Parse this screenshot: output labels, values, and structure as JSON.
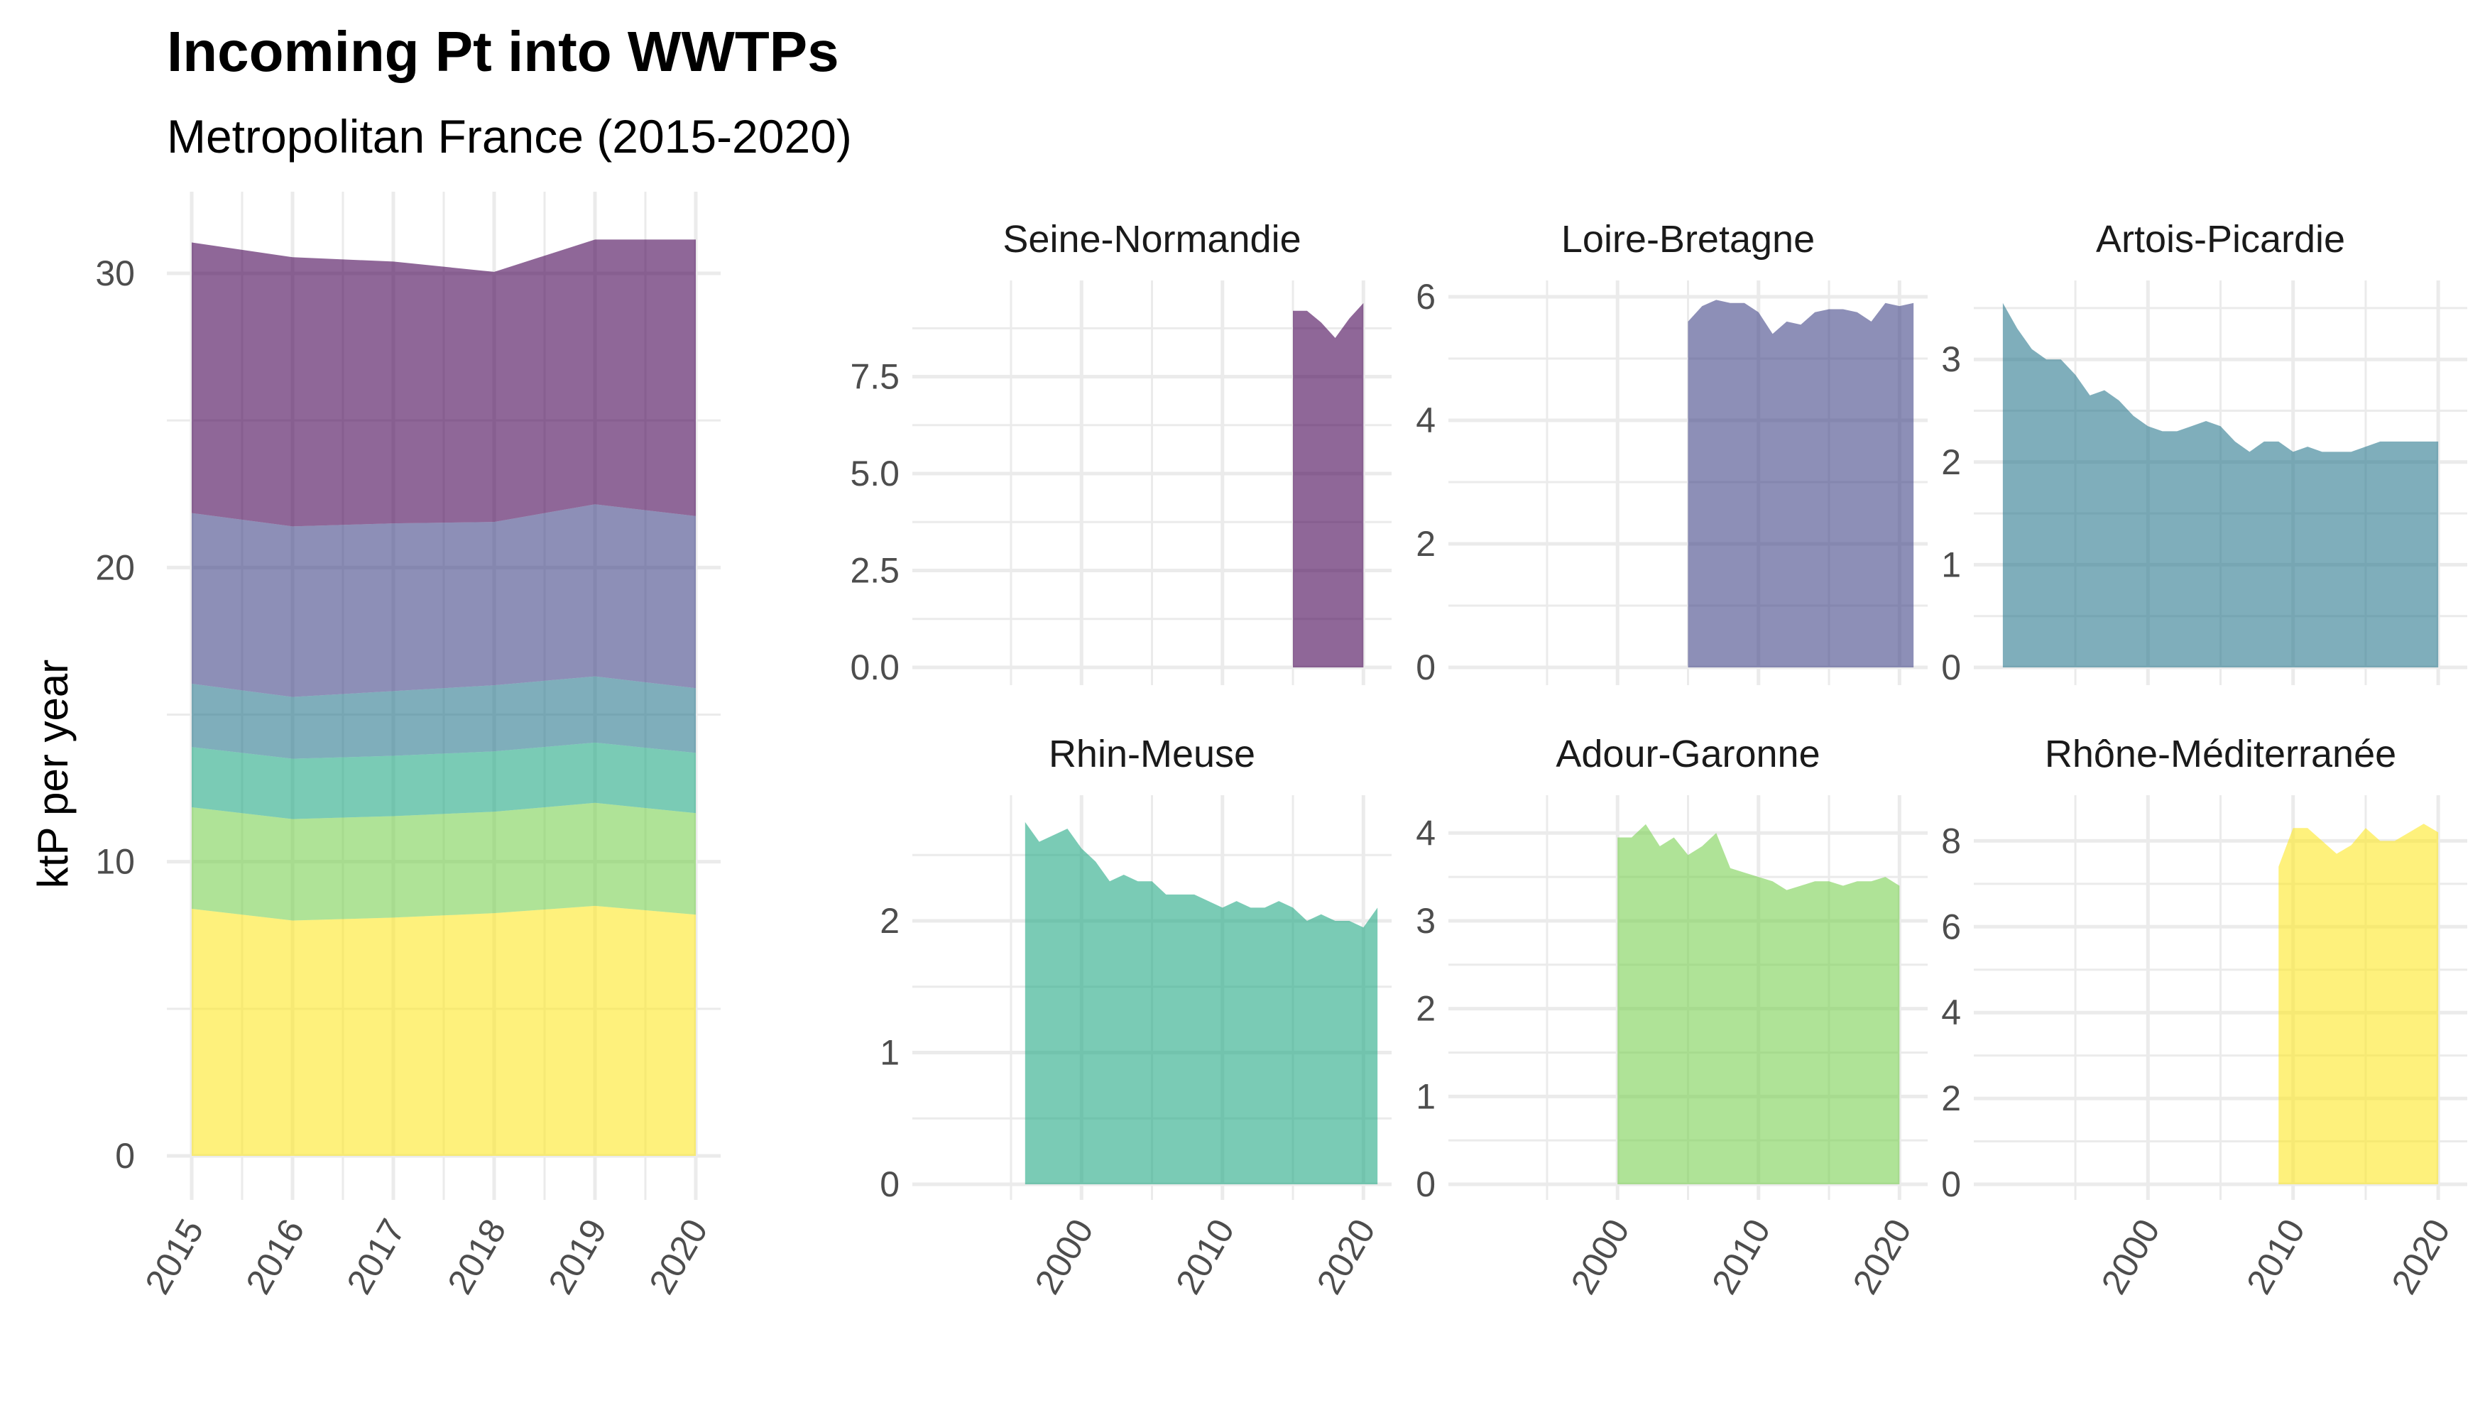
{
  "title": "Incoming Pt into WWTPs",
  "subtitle": "Metropolitan France (2015-2020)",
  "ylabel": "ktP per year",
  "colors": {
    "Seine-Normandie": "#440154",
    "Loire-Bretagne": "#414487",
    "Artois-Picardie": "#2a788e",
    "Rhin-Meuse": "#22a884",
    "Adour-Garonne": "#7ad151",
    "Rhône-Méditerranée": "#fde725"
  },
  "chart_data": [
    {
      "type": "area",
      "stacked": true,
      "x": [
        2015,
        2016,
        2017,
        2018,
        2019,
        2020
      ],
      "xticks": [
        "2015",
        "2016",
        "2017",
        "2018",
        "2019",
        "2020"
      ],
      "yticks": [
        "0",
        "10",
        "20",
        "30"
      ],
      "ylim": [
        0,
        31.5
      ],
      "series": [
        {
          "name": "Rhône-Méditerranée",
          "values": [
            8.4,
            8.0,
            8.1,
            8.25,
            8.5,
            8.2
          ]
        },
        {
          "name": "Adour-Garonne",
          "values": [
            3.45,
            3.45,
            3.45,
            3.45,
            3.5,
            3.45
          ]
        },
        {
          "name": "Rhin-Meuse",
          "values": [
            2.05,
            2.05,
            2.05,
            2.05,
            2.05,
            2.05
          ]
        },
        {
          "name": "Artois-Picardie",
          "values": [
            2.15,
            2.1,
            2.2,
            2.25,
            2.25,
            2.2
          ]
        },
        {
          "name": "Loire-Bretagne",
          "values": [
            5.8,
            5.8,
            5.7,
            5.55,
            5.85,
            5.85
          ]
        },
        {
          "name": "Seine-Normandie",
          "values": [
            9.2,
            9.15,
            8.9,
            8.5,
            9.0,
            9.4
          ]
        }
      ]
    },
    {
      "type": "area",
      "facets": [
        {
          "name": "Seine-Normandie",
          "x": [
            2015,
            2016,
            2017,
            2018,
            2019,
            2020
          ],
          "values": [
            9.2,
            9.2,
            8.9,
            8.5,
            9.0,
            9.4
          ],
          "ylim": [
            0,
            9.8
          ],
          "yticks": [
            0,
            2.5,
            5,
            7.5
          ],
          "yticklabels": [
            "0.0",
            "2.5",
            "5.0",
            "7.5"
          ]
        },
        {
          "name": "Loire-Bretagne",
          "x": [
            2005,
            2006,
            2007,
            2008,
            2009,
            2010,
            2011,
            2012,
            2013,
            2014,
            2015,
            2016,
            2017,
            2018,
            2019,
            2020,
            2021
          ],
          "values": [
            5.6,
            5.85,
            5.95,
            5.9,
            5.9,
            5.75,
            5.4,
            5.6,
            5.55,
            5.75,
            5.8,
            5.8,
            5.75,
            5.6,
            5.9,
            5.85,
            5.9
          ],
          "ylim": [
            0,
            6.15
          ],
          "yticks": [
            0,
            2,
            4,
            6
          ],
          "yticklabels": [
            "0",
            "2",
            "4",
            "6"
          ]
        },
        {
          "name": "Artois-Picardie",
          "x": [
            1990,
            1991,
            1992,
            1993,
            1994,
            1995,
            1996,
            1997,
            1998,
            1999,
            2000,
            2001,
            2002,
            2003,
            2004,
            2005,
            2006,
            2007,
            2008,
            2009,
            2010,
            2011,
            2012,
            2013,
            2014,
            2015,
            2016,
            2017,
            2018,
            2019,
            2020
          ],
          "values": [
            3.55,
            3.3,
            3.1,
            3.0,
            3.0,
            2.85,
            2.65,
            2.7,
            2.6,
            2.45,
            2.35,
            2.3,
            2.3,
            2.35,
            2.4,
            2.35,
            2.2,
            2.1,
            2.2,
            2.2,
            2.1,
            2.15,
            2.1,
            2.1,
            2.1,
            2.15,
            2.2,
            2.2,
            2.2,
            2.2,
            2.2
          ],
          "ylim": [
            0,
            3.7
          ],
          "yticks": [
            0,
            1,
            2,
            3
          ],
          "yticklabels": [
            "0",
            "1",
            "2",
            "3"
          ]
        },
        {
          "name": "Rhin-Meuse",
          "x": [
            1996,
            1997,
            1998,
            1999,
            2000,
            2001,
            2002,
            2003,
            2004,
            2005,
            2006,
            2007,
            2008,
            2009,
            2010,
            2011,
            2012,
            2013,
            2014,
            2015,
            2016,
            2017,
            2018,
            2019,
            2020,
            2021
          ],
          "values": [
            2.75,
            2.6,
            2.65,
            2.7,
            2.55,
            2.45,
            2.3,
            2.35,
            2.3,
            2.3,
            2.2,
            2.2,
            2.2,
            2.15,
            2.1,
            2.15,
            2.1,
            2.1,
            2.15,
            2.1,
            2.0,
            2.05,
            2.0,
            2.0,
            1.95,
            2.1
          ],
          "ylim": [
            0,
            2.9
          ],
          "yticks": [
            0,
            1,
            2
          ],
          "yticklabels": [
            "0",
            "1",
            "2"
          ]
        },
        {
          "name": "Adour-Garonne",
          "x": [
            2000,
            2001,
            2002,
            2003,
            2004,
            2005,
            2006,
            2007,
            2008,
            2009,
            2010,
            2011,
            2012,
            2013,
            2014,
            2015,
            2016,
            2017,
            2018,
            2019,
            2020
          ],
          "values": [
            3.95,
            3.95,
            4.1,
            3.85,
            3.95,
            3.75,
            3.85,
            4.0,
            3.6,
            3.55,
            3.5,
            3.45,
            3.35,
            3.4,
            3.45,
            3.45,
            3.4,
            3.45,
            3.45,
            3.5,
            3.4
          ],
          "ylim": [
            0,
            4.35
          ],
          "yticks": [
            0,
            1,
            2,
            3,
            4
          ],
          "yticklabels": [
            "0",
            "1",
            "2",
            "3",
            "4"
          ]
        },
        {
          "name": "Rhône-Méditerranée",
          "x": [
            2009,
            2010,
            2011,
            2012,
            2013,
            2014,
            2015,
            2016,
            2017,
            2018,
            2019,
            2020
          ],
          "values": [
            7.4,
            8.3,
            8.3,
            8.0,
            7.7,
            7.9,
            8.3,
            8.0,
            8.0,
            8.2,
            8.4,
            8.2
          ],
          "ylim": [
            0,
            8.9
          ],
          "yticks": [
            0,
            2,
            4,
            6,
            8
          ],
          "yticklabels": [
            "0",
            "2",
            "4",
            "6",
            "8"
          ]
        }
      ],
      "xlim": [
        1988,
        2022
      ],
      "xticks": [
        2000,
        2010,
        2020
      ],
      "xticklabels": [
        "2000",
        "2010",
        "2020"
      ]
    }
  ]
}
